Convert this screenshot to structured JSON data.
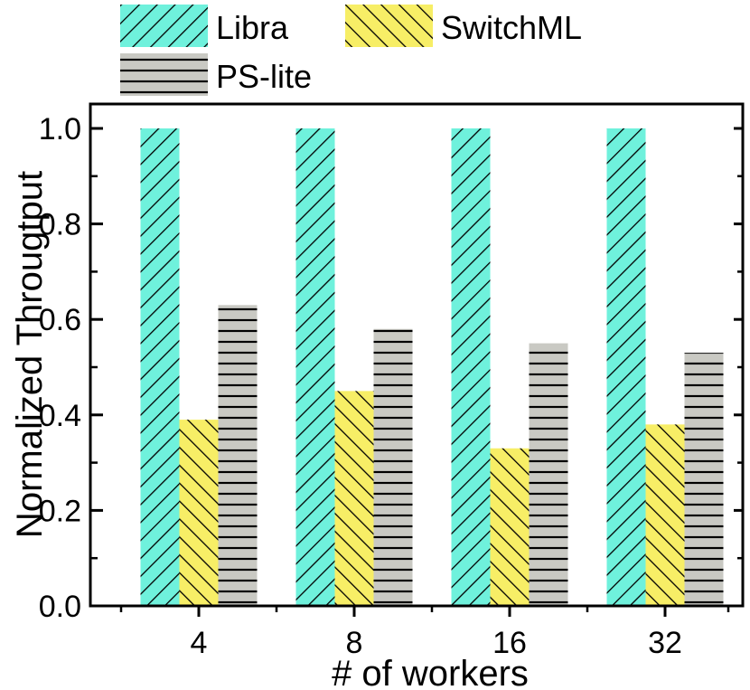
{
  "chart_data": {
    "type": "bar",
    "title": "",
    "xlabel": "# of workers",
    "ylabel": "Normalized Througtput",
    "categories": [
      "4",
      "8",
      "16",
      "32"
    ],
    "series": [
      {
        "name": "Libra",
        "values": [
          1.0,
          1.0,
          1.0,
          1.0
        ],
        "color": "#6ff1dc",
        "pattern": "diagonal-forward"
      },
      {
        "name": "SwitchML",
        "values": [
          0.39,
          0.45,
          0.33,
          0.38
        ],
        "color": "#f7ee66",
        "pattern": "diagonal-backward"
      },
      {
        "name": "PS-lite",
        "values": [
          0.63,
          0.58,
          0.55,
          0.53
        ],
        "color": "#c9c9c3",
        "pattern": "horizontal"
      }
    ],
    "ylim": [
      0,
      1.0
    ],
    "yticks": [
      "0.0",
      "0.2",
      "0.4",
      "0.6",
      "0.8",
      "1.0"
    ],
    "grid": false,
    "legend_position": "top"
  }
}
